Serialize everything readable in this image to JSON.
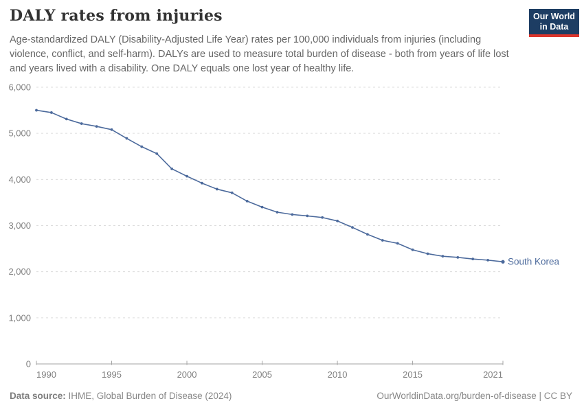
{
  "header": {
    "title": "DALY rates from injuries",
    "subtitle": "Age-standardized DALY (Disability-Adjusted Life Year) rates per 100,000 individuals from injuries (including violence, conflict, and self-harm). DALYs are used to measure total burden of disease - both from years of life lost and years lived with a disability. One DALY equals one lost year of healthy life.",
    "logo": {
      "line1": "Our World",
      "line2": "in Data",
      "bg_color": "#1d3d63",
      "accent_color": "#dc352c"
    }
  },
  "chart_data": {
    "type": "line",
    "title": "DALY rates from injuries",
    "xlabel": "",
    "ylabel": "",
    "xlim": [
      1990,
      2021
    ],
    "ylim": [
      0,
      6000
    ],
    "x_ticks": [
      1990,
      1995,
      2000,
      2005,
      2010,
      2015,
      2021
    ],
    "y_ticks": [
      0,
      1000,
      2000,
      3000,
      4000,
      5000,
      6000
    ],
    "grid": "horizontal-dashed",
    "legend_position": "end-of-line-label",
    "series": [
      {
        "name": "South Korea",
        "color": "#4c6a9c",
        "x": [
          1990,
          1991,
          1992,
          1993,
          1994,
          1995,
          1996,
          1997,
          1998,
          1999,
          2000,
          2001,
          2002,
          2003,
          2004,
          2005,
          2006,
          2007,
          2008,
          2009,
          2010,
          2011,
          2012,
          2013,
          2014,
          2015,
          2016,
          2017,
          2018,
          2019,
          2020,
          2021
        ],
        "values": [
          5500,
          5450,
          5310,
          5210,
          5150,
          5080,
          4890,
          4710,
          4560,
          4230,
          4070,
          3920,
          3790,
          3710,
          3530,
          3400,
          3290,
          3240,
          3210,
          3175,
          3100,
          2960,
          2810,
          2680,
          2615,
          2475,
          2390,
          2335,
          2310,
          2275,
          2250,
          2215
        ]
      }
    ]
  },
  "footer": {
    "source_label": "Data source:",
    "source_text": " IHME, Global Burden of Disease (2024)",
    "link_text": "OurWorldinData.org/burden-of-disease | CC BY"
  }
}
